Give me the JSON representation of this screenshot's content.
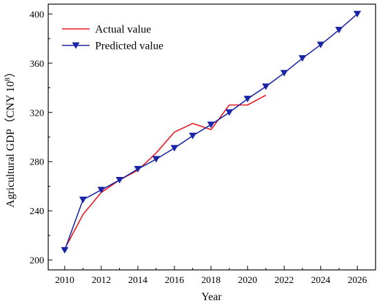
{
  "chart_data": {
    "type": "line",
    "title": "",
    "xlabel": "Year",
    "ylabel_main": "Agricultural GDP（CNY 10",
    "ylabel_sup": "8",
    "ylabel_end": "）",
    "xlim": [
      2009.1,
      2027.0
    ],
    "ylim": [
      192,
      408
    ],
    "x_ticks": [
      2010,
      2012,
      2014,
      2016,
      2018,
      2020,
      2022,
      2024,
      2026
    ],
    "y_ticks": [
      200,
      240,
      280,
      320,
      360,
      400
    ],
    "grid": false,
    "legend_position": "top-left",
    "series": [
      {
        "name": "Actual value",
        "color": "#e8141b",
        "marker": "none",
        "x": [
          2010,
          2011,
          2012,
          2013,
          2014,
          2015,
          2016,
          2017,
          2018,
          2019,
          2020,
          2021
        ],
        "y": [
          209,
          237,
          255,
          265,
          273,
          287,
          304,
          311,
          306,
          326,
          326,
          334
        ]
      },
      {
        "name": "Predicted value",
        "color": "#1a25a6",
        "marker": "triangle-down",
        "x": [
          2010,
          2011,
          2012,
          2013,
          2014,
          2015,
          2016,
          2017,
          2018,
          2019,
          2020,
          2021,
          2022,
          2023,
          2024,
          2025,
          2026
        ],
        "y": [
          208,
          249,
          257,
          265,
          274,
          282,
          291,
          301,
          310,
          320,
          331,
          341,
          352,
          364,
          375,
          387,
          400
        ]
      }
    ]
  }
}
